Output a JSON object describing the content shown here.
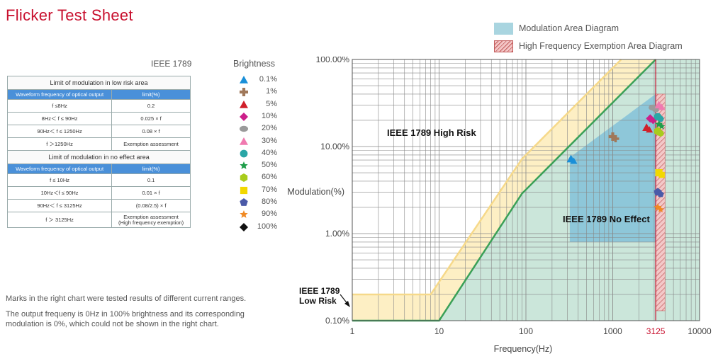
{
  "title": "Flicker Test Sheet",
  "legend": {
    "modulation_area": "Modulation Area Diagram",
    "hf_exemption_area": "High Frequency Exemption Area Diagram"
  },
  "table": {
    "heading": "IEEE 1789",
    "low_risk_title": "Limit of modulation in low risk area",
    "no_effect_title": "Limit of modulation in no effect area",
    "col_freq": "Waveform frequency of optical output",
    "col_limit": "limit(%)",
    "low_risk_rows": [
      {
        "freq": "f ≤8Hz",
        "limit": "0.2"
      },
      {
        "freq": "8Hz＜ f ≤ 90Hz",
        "limit": "0.025 × f"
      },
      {
        "freq": "90Hz＜ f ≤ 1250Hz",
        "limit": "0.08 × f"
      },
      {
        "freq": "f ＞1250Hz",
        "limit": "Exemption assessment"
      }
    ],
    "no_effect_rows": [
      {
        "freq": "f ≤ 10Hz",
        "limit": "0.1"
      },
      {
        "freq": "10Hz＜f ≤ 90Hz",
        "limit": "0.01 × f"
      },
      {
        "freq": "90Hz＜ f ≤ 3125Hz",
        "limit": "(0.08/2.5) × f"
      },
      {
        "freq": "f ＞ 3125Hz",
        "limit": "Exemption assessment",
        "limit2": "(High frequency exemption)"
      }
    ]
  },
  "brightness": {
    "heading": "Brightness",
    "items": [
      {
        "label": "0.1%",
        "color": "#1a8fd8",
        "shape": "triangle-icon"
      },
      {
        "label": "1%",
        "color": "#a0785a",
        "shape": "cross-icon"
      },
      {
        "label": "5%",
        "color": "#d0202a",
        "shape": "triangle-icon"
      },
      {
        "label": "10%",
        "color": "#cc1f8a",
        "shape": "diamond-icon"
      },
      {
        "label": "20%",
        "color": "#9a9a9a",
        "shape": "ellipse-icon"
      },
      {
        "label": "30%",
        "color": "#f07ab0",
        "shape": "triangle-icon"
      },
      {
        "label": "40%",
        "color": "#2aa6a6",
        "shape": "circle-icon"
      },
      {
        "label": "50%",
        "color": "#1f9e4a",
        "shape": "star-icon"
      },
      {
        "label": "60%",
        "color": "#a8cc1c",
        "shape": "hexagon-icon"
      },
      {
        "label": "70%",
        "color": "#f2d800",
        "shape": "square-icon"
      },
      {
        "label": "80%",
        "color": "#4a5aa8",
        "shape": "pentagon-icon"
      },
      {
        "label": "90%",
        "color": "#f08a24",
        "shape": "star-icon"
      },
      {
        "label": "100%",
        "color": "#111111",
        "shape": "diamond-icon"
      }
    ]
  },
  "notes": [
    "Marks in the right chart were tested results of different current ranges.",
    "The output frequeny is 0Hz in 100% brightness and its corresponding",
    "modulation is 0%, which could not be shown in the right chart."
  ],
  "chart_data": {
    "type": "scatter",
    "xlabel": "Frequency(Hz)",
    "ylabel": "Modulation(%)",
    "x_scale": "log",
    "y_scale": "log",
    "xlim": [
      1,
      10000
    ],
    "ylim": [
      0.1,
      100
    ],
    "x_ticks": [
      1,
      10,
      100,
      1000,
      3125,
      10000
    ],
    "x_tick_labels": [
      "1",
      "10",
      "100",
      "1000",
      "3125",
      "10000"
    ],
    "y_ticks": [
      0.1,
      1,
      10,
      100
    ],
    "y_tick_labels": [
      "0.10%",
      "1.00%",
      "10.00%",
      "100.00%"
    ],
    "grid": true,
    "annotations": [
      "IEEE 1789 High Risk",
      "IEEE 1789 No Effect",
      "IEEE 1789",
      "Low Risk"
    ],
    "low_risk_limit": [
      [
        1,
        0.2
      ],
      [
        8,
        0.2
      ],
      [
        90,
        7.2
      ],
      [
        1250,
        100
      ]
    ],
    "no_effect_limit": [
      [
        1,
        0.1
      ],
      [
        10,
        0.1
      ],
      [
        90,
        2.88
      ],
      [
        3125,
        100
      ]
    ],
    "modulation_area": [
      [
        320,
        7.5
      ],
      [
        320,
        0.8
      ],
      [
        3125,
        0.8
      ],
      [
        3125,
        40
      ]
    ],
    "hf_exemption_area": [
      3125,
      4000
    ],
    "series": [
      {
        "name": "0.1%",
        "points": [
          [
            330,
            7.2
          ]
        ]
      },
      {
        "name": "1%",
        "points": [
          [
            1000,
            13
          ]
        ]
      },
      {
        "name": "5%",
        "points": [
          [
            2450,
            16.5
          ]
        ]
      },
      {
        "name": "10%",
        "points": [
          [
            2700,
            21
          ]
        ]
      },
      {
        "name": "20%",
        "points": [
          [
            2900,
            28
          ]
        ]
      },
      {
        "name": "30%",
        "points": [
          [
            3400,
            30
          ]
        ]
      },
      {
        "name": "40%",
        "points": [
          [
            3300,
            22
          ]
        ]
      },
      {
        "name": "50%",
        "points": [
          [
            3400,
            18
          ]
        ]
      },
      {
        "name": "60%",
        "points": [
          [
            3300,
            15
          ]
        ]
      },
      {
        "name": "70%",
        "points": [
          [
            3400,
            5
          ]
        ]
      },
      {
        "name": "80%",
        "points": [
          [
            3300,
            3
          ]
        ]
      },
      {
        "name": "90%",
        "points": [
          [
            3300,
            2
          ]
        ]
      }
    ]
  }
}
